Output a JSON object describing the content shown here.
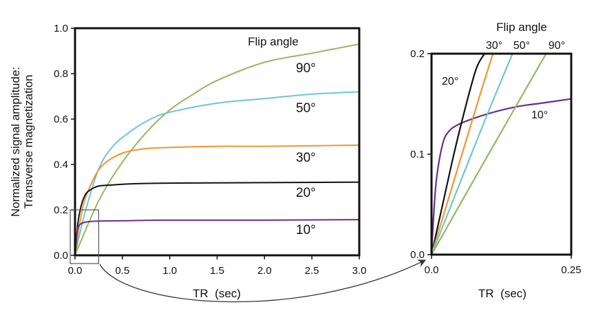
{
  "figure": {
    "ylabel_lines": [
      "Normalized signal amplitude:",
      "Transverse magnetization"
    ],
    "arrow": "connector from inset box on left chart to right chart",
    "colors": {
      "10°": "#6a2c91",
      "20°": "#111111",
      "30°": "#f0962e",
      "50°": "#6cc5d8",
      "90°": "#92b85c"
    }
  },
  "chart_data": [
    {
      "type": "line",
      "xlabel": "TR  (sec)",
      "ylabel": "Normalized signal amplitude: Transverse magnetization",
      "xlim": [
        0,
        3.0
      ],
      "ylim": [
        0,
        1.0
      ],
      "xticks": [
        "0.0",
        "0.5",
        "1.0",
        "1.5",
        "2.0",
        "2.5",
        "3.0"
      ],
      "yticks": [
        "0.0",
        "0.2",
        "0.4",
        "0.6",
        "0.8",
        "1.0"
      ],
      "legend_title": "Flip angle",
      "series": [
        {
          "name": "90°",
          "color": "#92b85c",
          "x": [
            0,
            0.25,
            0.5,
            0.75,
            1.0,
            1.25,
            1.5,
            2.0,
            2.5,
            3.0
          ],
          "y": [
            0,
            0.24,
            0.41,
            0.54,
            0.64,
            0.71,
            0.77,
            0.85,
            0.89,
            0.93
          ]
        },
        {
          "name": "50°",
          "color": "#6cc5d8",
          "x": [
            0,
            0.1,
            0.25,
            0.4,
            0.6,
            0.8,
            1.0,
            1.5,
            2.0,
            2.5,
            3.0
          ],
          "y": [
            0,
            0.18,
            0.38,
            0.48,
            0.55,
            0.6,
            0.63,
            0.67,
            0.69,
            0.71,
            0.72
          ]
        },
        {
          "name": "30°",
          "color": "#f0962e",
          "x": [
            0,
            0.05,
            0.1,
            0.2,
            0.3,
            0.5,
            0.75,
            1.0,
            1.5,
            2.0,
            3.0
          ],
          "y": [
            0,
            0.14,
            0.24,
            0.34,
            0.4,
            0.45,
            0.47,
            0.475,
            0.48,
            0.48,
            0.485
          ]
        },
        {
          "name": "20°",
          "color": "#111111",
          "x": [
            0,
            0.03,
            0.06,
            0.1,
            0.15,
            0.25,
            0.4,
            0.6,
            1.0,
            2.0,
            3.0
          ],
          "y": [
            0,
            0.14,
            0.21,
            0.26,
            0.285,
            0.305,
            0.31,
            0.315,
            0.318,
            0.32,
            0.322
          ]
        },
        {
          "name": "10°",
          "color": "#6a2c91",
          "x": [
            0,
            0.01,
            0.02,
            0.03,
            0.05,
            0.1,
            0.2,
            0.5,
            1.0,
            2.0,
            3.0
          ],
          "y": [
            0,
            0.06,
            0.1,
            0.12,
            0.135,
            0.145,
            0.15,
            0.152,
            0.155,
            0.155,
            0.157
          ]
        }
      ],
      "annotations": [
        {
          "text": "90°",
          "series": "90°"
        },
        {
          "text": "50°",
          "series": "50°"
        },
        {
          "text": "30°",
          "series": "30°"
        },
        {
          "text": "20°",
          "series": "20°"
        },
        {
          "text": "10°",
          "series": "10°"
        }
      ],
      "inset_box": {
        "xlim": [
          0,
          0.25
        ],
        "ylim": [
          0,
          0.2
        ]
      }
    },
    {
      "type": "line",
      "xlabel": "TR  (sec)",
      "xlim": [
        0,
        0.25
      ],
      "ylim": [
        0,
        0.2
      ],
      "xticks": [
        "0.0",
        "0.25"
      ],
      "yticks": [
        "0.0",
        "0.1",
        "0.2"
      ],
      "legend_title": "Flip angle",
      "series": [
        {
          "name": "10°",
          "color": "#6a2c91",
          "x": [
            0,
            0.005,
            0.01,
            0.02,
            0.03,
            0.05,
            0.1,
            0.15,
            0.2,
            0.25
          ],
          "y": [
            0,
            0.05,
            0.08,
            0.11,
            0.122,
            0.13,
            0.14,
            0.147,
            0.151,
            0.155
          ]
        },
        {
          "name": "20°",
          "color": "#111111",
          "x": [
            0,
            0.02,
            0.04,
            0.06,
            0.08,
            0.095
          ],
          "y": [
            0,
            0.05,
            0.1,
            0.145,
            0.185,
            0.2
          ]
        },
        {
          "name": "30°",
          "color": "#f0962e",
          "x": [
            0,
            0.03,
            0.06,
            0.09,
            0.11
          ],
          "y": [
            0,
            0.055,
            0.11,
            0.165,
            0.2
          ]
        },
        {
          "name": "50°",
          "color": "#6cc5d8",
          "x": [
            0,
            0.05,
            0.1,
            0.145
          ],
          "y": [
            0,
            0.07,
            0.14,
            0.2
          ]
        },
        {
          "name": "90°",
          "color": "#92b85c",
          "x": [
            0,
            0.1,
            0.205
          ],
          "y": [
            0,
            0.098,
            0.2
          ]
        }
      ],
      "annotations": [
        {
          "text": "20°",
          "series": "20°"
        },
        {
          "text": "10°",
          "series": "10°"
        },
        {
          "text": "30°",
          "series": "30°"
        },
        {
          "text": "50°",
          "series": "50°"
        },
        {
          "text": "90°",
          "series": "90°"
        }
      ]
    }
  ]
}
